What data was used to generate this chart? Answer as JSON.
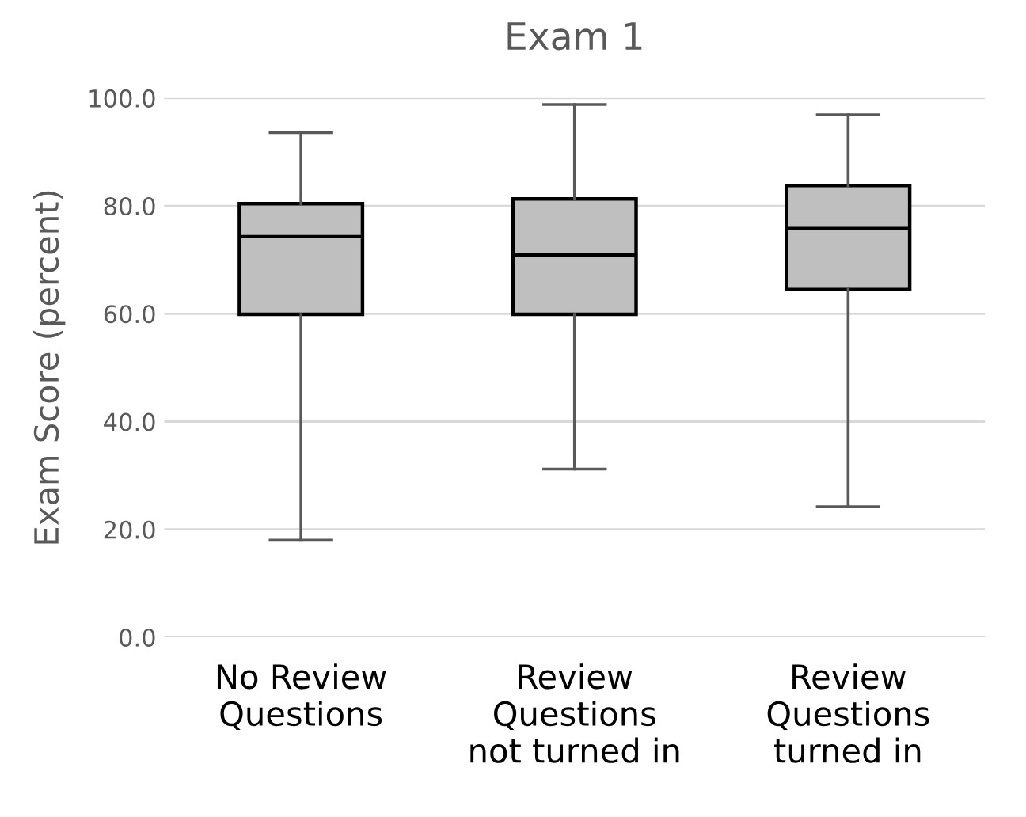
{
  "chart_data": {
    "type": "box",
    "title": "Exam 1",
    "ylabel": "Exam Score (percent)",
    "categories": [
      "No Review\nQuestions",
      "Review\nQuestions\nnot turned in",
      "Review\nQuestions\nturned in"
    ],
    "boxes": [
      {
        "low": 18.0,
        "q1": 59.9,
        "median": 74.3,
        "q3": 80.4,
        "high": 93.6
      },
      {
        "low": 31.2,
        "q1": 59.9,
        "median": 70.9,
        "q3": 81.3,
        "high": 98.8
      },
      {
        "low": 24.2,
        "q1": 64.5,
        "median": 75.8,
        "q3": 83.8,
        "high": 96.9
      }
    ],
    "color": "#bfbfbf",
    "ylim": [
      0,
      100
    ],
    "yticks": [
      {
        "value": 0,
        "label": "0.0"
      },
      {
        "value": 20,
        "label": "20.0"
      },
      {
        "value": 40,
        "label": "40.0"
      },
      {
        "value": 60,
        "label": "60.0"
      },
      {
        "value": 80,
        "label": "80.0"
      },
      {
        "value": 100,
        "label": "100.0"
      }
    ],
    "grid": "y"
  }
}
